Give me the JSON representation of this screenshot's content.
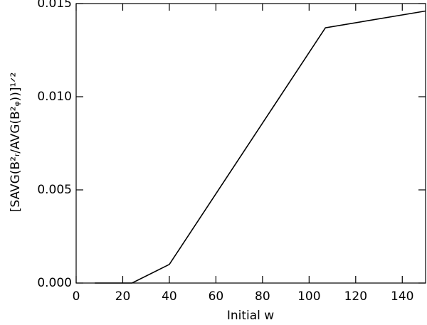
{
  "chart_data": {
    "type": "line",
    "xlabel": "Initial  w",
    "ylabel": "[SAVG(B²ᵣ/AVG(B²ᵩ))]¹ᐟ²",
    "x": [
      8,
      24,
      40,
      107,
      150
    ],
    "series": [
      {
        "color": "#000000",
        "values": [
          0,
          0,
          0.001,
          0.0137,
          0.0146
        ]
      }
    ],
    "xlim": [
      0,
      150
    ],
    "xticks": [
      0,
      20,
      40,
      60,
      80,
      100,
      120,
      140
    ],
    "ylim": [
      0,
      0.015
    ],
    "yticks": [
      {
        "value": 0,
        "label": "0.000"
      },
      {
        "value": 0.005,
        "label": "0.005"
      },
      {
        "value": 0.01,
        "label": "0.010"
      },
      {
        "value": 0.015,
        "label": "0.015"
      }
    ]
  }
}
